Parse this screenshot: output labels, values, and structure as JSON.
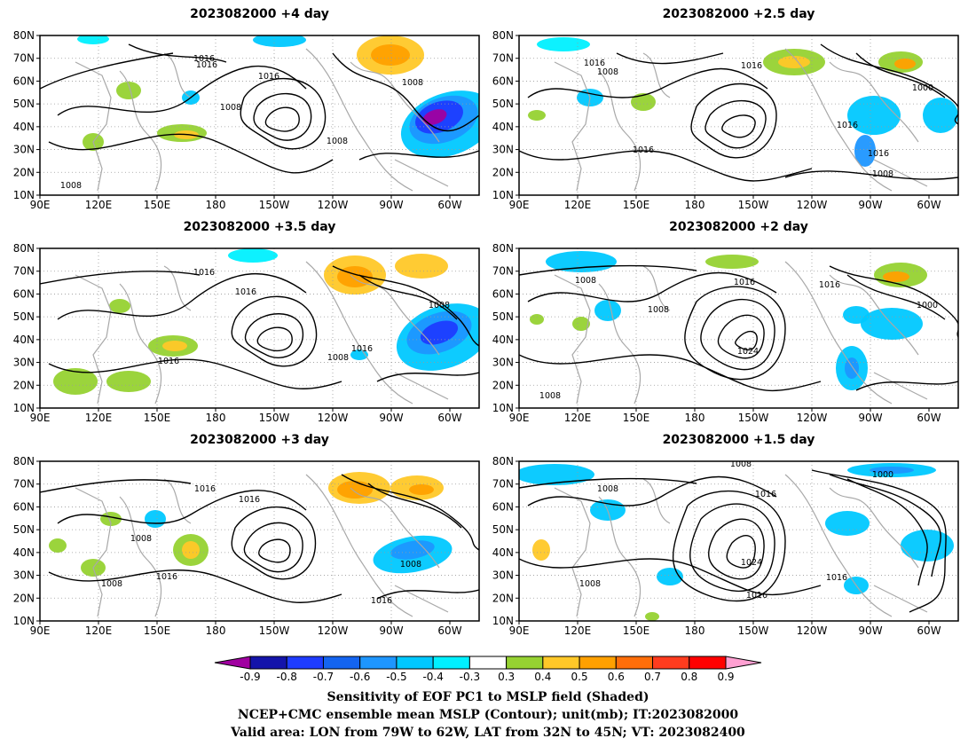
{
  "panels": [
    {
      "title": "2023082000  +4 day",
      "labels": [
        "1016",
        "1016",
        "1016",
        "1008",
        "1008",
        "1008",
        "1008"
      ]
    },
    {
      "title": "2023082000  +2.5 day",
      "labels": [
        "1016",
        "1008",
        "1016",
        "1000",
        "1016",
        "1016",
        "1016",
        "1008"
      ]
    },
    {
      "title": "2023082000  +3.5 day",
      "labels": [
        "1016",
        "1016",
        "1008",
        "1016",
        "1008",
        "1016"
      ]
    },
    {
      "title": "2023082000  +2 day",
      "labels": [
        "1008",
        "1008",
        "1016",
        "1016",
        "1000",
        "1024",
        "1008"
      ]
    },
    {
      "title": "2023082000  +3 day",
      "labels": [
        "1016",
        "1016",
        "1008",
        "1016",
        "1008",
        "1016",
        "1008"
      ]
    },
    {
      "title": "2023082000  +1.5 day",
      "labels": [
        "1008",
        "1008",
        "1000",
        "1016",
        "1024",
        "1008",
        "1016",
        "1016"
      ]
    }
  ],
  "axes": {
    "lat_labels": [
      "80N",
      "70N",
      "60N",
      "50N",
      "40N",
      "30N",
      "20N",
      "10N"
    ],
    "lon_labels": [
      "90E",
      "120E",
      "150E",
      "180",
      "150W",
      "120W",
      "90W",
      "60W"
    ]
  },
  "colorbar": {
    "labels": [
      "-0.9",
      "-0.8",
      "-0.7",
      "-0.6",
      "-0.5",
      "-0.4",
      "-0.3",
      "0.3",
      "0.4",
      "0.5",
      "0.6",
      "0.7",
      "0.8",
      "0.9"
    ],
    "colors": [
      "#a000a0",
      "#1414aa",
      "#1e3cff",
      "#1464f0",
      "#1e96ff",
      "#00c8ff",
      "#00f0ff",
      "#ffffff",
      "#96d232",
      "#ffc828",
      "#ffa000",
      "#ff6e0a",
      "#ff3c1e",
      "#ff0000",
      "#ffa0d2"
    ]
  },
  "footer": {
    "line1": "Sensitivity of EOF PC1 to MSLP field (Shaded)",
    "line2": "NCEP+CMC ensemble mean MSLP (Contour); unit(mb); IT:2023082000",
    "line3": "Valid area: LON from 79W to 62W, LAT from 32N to 45N; VT: 2023082400"
  }
}
